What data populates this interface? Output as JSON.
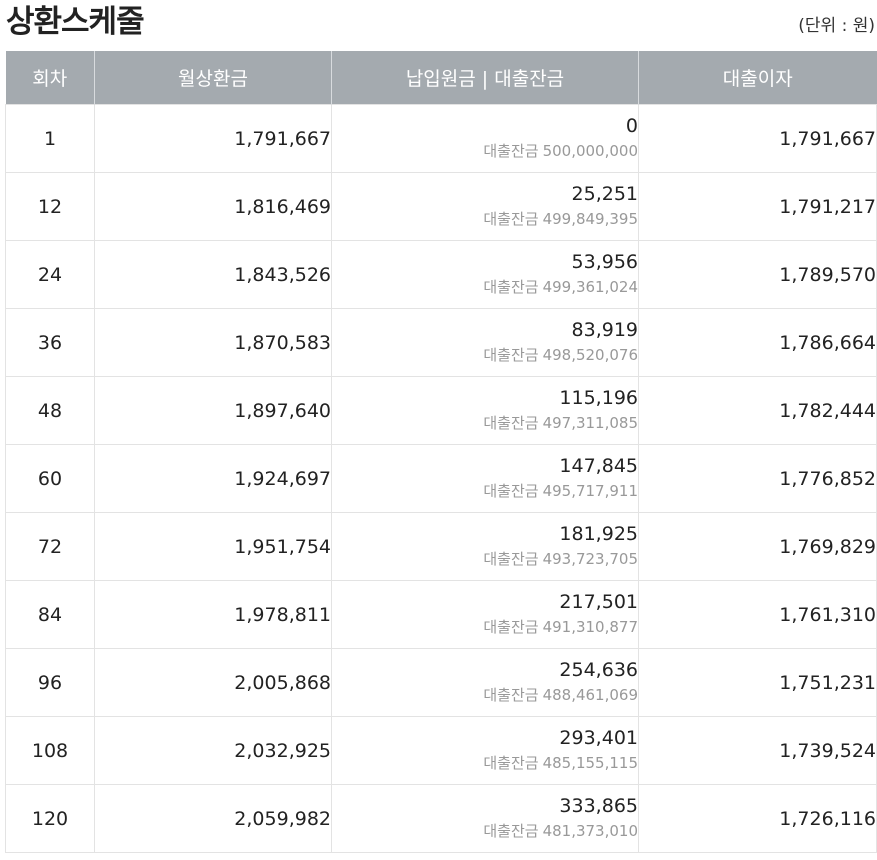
{
  "title": "상환스케줄",
  "unit_note": "(단위 : 원)",
  "table": {
    "headers": {
      "round": "회차",
      "monthly_payment": "월상환금",
      "principal_balance": "납입원금 | 대출잔금",
      "interest": "대출이자"
    },
    "balance_label": "대출잔금",
    "rows": [
      {
        "round": "1",
        "monthly_payment": "1,791,667",
        "principal": "0",
        "balance": "500,000,000",
        "interest": "1,791,667"
      },
      {
        "round": "12",
        "monthly_payment": "1,816,469",
        "principal": "25,251",
        "balance": "499,849,395",
        "interest": "1,791,217"
      },
      {
        "round": "24",
        "monthly_payment": "1,843,526",
        "principal": "53,956",
        "balance": "499,361,024",
        "interest": "1,789,570"
      },
      {
        "round": "36",
        "monthly_payment": "1,870,583",
        "principal": "83,919",
        "balance": "498,520,076",
        "interest": "1,786,664"
      },
      {
        "round": "48",
        "monthly_payment": "1,897,640",
        "principal": "115,196",
        "balance": "497,311,085",
        "interest": "1,782,444"
      },
      {
        "round": "60",
        "monthly_payment": "1,924,697",
        "principal": "147,845",
        "balance": "495,717,911",
        "interest": "1,776,852"
      },
      {
        "round": "72",
        "monthly_payment": "1,951,754",
        "principal": "181,925",
        "balance": "493,723,705",
        "interest": "1,769,829"
      },
      {
        "round": "84",
        "monthly_payment": "1,978,811",
        "principal": "217,501",
        "balance": "491,310,877",
        "interest": "1,761,310"
      },
      {
        "round": "96",
        "monthly_payment": "2,005,868",
        "principal": "254,636",
        "balance": "488,461,069",
        "interest": "1,751,231"
      },
      {
        "round": "108",
        "monthly_payment": "2,032,925",
        "principal": "293,401",
        "balance": "485,155,115",
        "interest": "1,739,524"
      },
      {
        "round": "120",
        "monthly_payment": "2,059,982",
        "principal": "333,865",
        "balance": "481,373,010",
        "interest": "1,726,116"
      }
    ]
  }
}
